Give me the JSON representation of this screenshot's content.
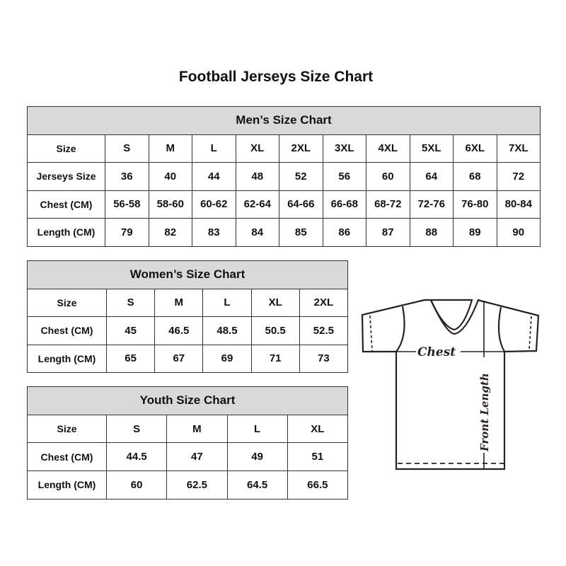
{
  "title": "Football Jerseys Size Chart",
  "men": {
    "heading": "Men’s Size Chart",
    "rows": [
      [
        "Size",
        "S",
        "M",
        "L",
        "XL",
        "2XL",
        "3XL",
        "4XL",
        "5XL",
        "6XL",
        "7XL"
      ],
      [
        "Jerseys Size",
        "36",
        "40",
        "44",
        "48",
        "52",
        "56",
        "60",
        "64",
        "68",
        "72"
      ],
      [
        "Chest (CM)",
        "56-58",
        "58-60",
        "60-62",
        "62-64",
        "64-66",
        "66-68",
        "68-72",
        "72-76",
        "76-80",
        "80-84"
      ],
      [
        "Length (CM)",
        "79",
        "82",
        "83",
        "84",
        "85",
        "86",
        "87",
        "88",
        "89",
        "90"
      ]
    ]
  },
  "women": {
    "heading": "Women’s Size Chart",
    "rows": [
      [
        "Size",
        "S",
        "M",
        "L",
        "XL",
        "2XL"
      ],
      [
        "Chest (CM)",
        "45",
        "46.5",
        "48.5",
        "50.5",
        "52.5"
      ],
      [
        "Length (CM)",
        "65",
        "67",
        "69",
        "71",
        "73"
      ]
    ]
  },
  "youth": {
    "heading": "Youth Size Chart",
    "rows": [
      [
        "Size",
        "S",
        "M",
        "L",
        "XL"
      ],
      [
        "Chest (CM)",
        "44.5",
        "47",
        "49",
        "51"
      ],
      [
        "Length (CM)",
        "60",
        "62.5",
        "64.5",
        "66.5"
      ]
    ]
  },
  "diagram": {
    "chest_label": "Chest",
    "length_label": "Front Length"
  }
}
